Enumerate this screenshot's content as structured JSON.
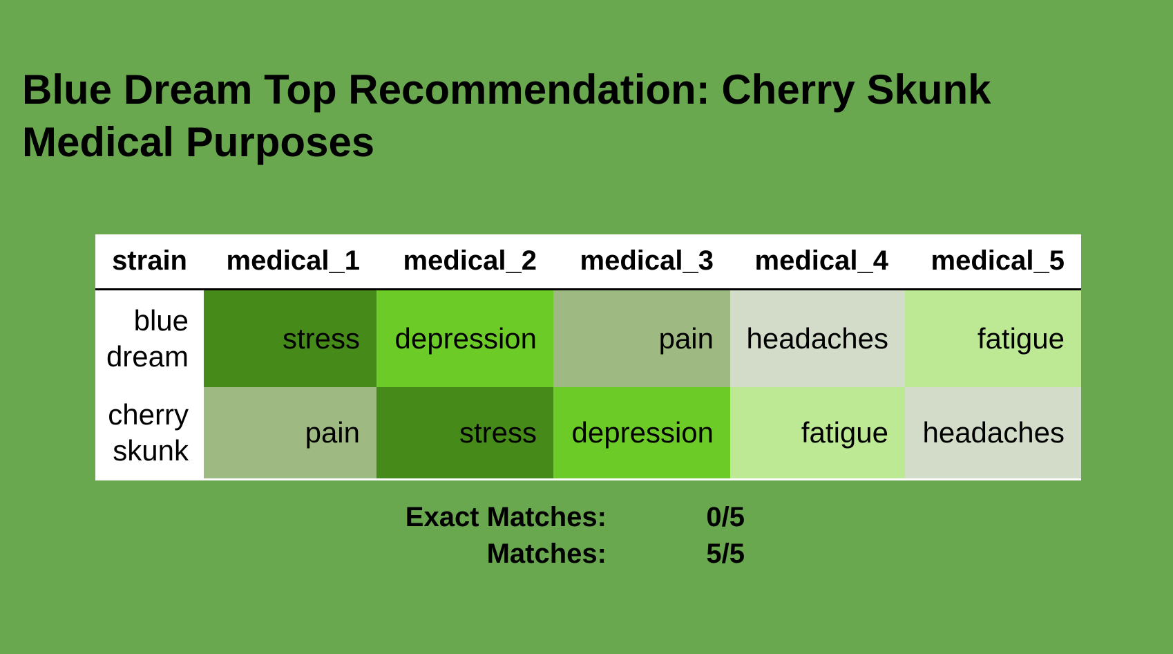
{
  "title": {
    "line1": "Blue Dream Top Recommendation: Cherry Skunk",
    "line2": "Medical Purposes"
  },
  "table": {
    "columns": [
      "strain",
      "medical_1",
      "medical_2",
      "medical_3",
      "medical_4",
      "medical_5"
    ],
    "rows": [
      {
        "strain": "blue dream",
        "cells": [
          {
            "text": "stress",
            "color": "#468a1a"
          },
          {
            "text": "depression",
            "color": "#6dcb27"
          },
          {
            "text": "pain",
            "color": "#9eb982"
          },
          {
            "text": "headaches",
            "color": "#d3dcc9"
          },
          {
            "text": "fatigue",
            "color": "#bde995"
          }
        ]
      },
      {
        "strain": "cherry skunk",
        "cells": [
          {
            "text": "pain",
            "color": "#9eb982"
          },
          {
            "text": "stress",
            "color": "#468a1a"
          },
          {
            "text": "depression",
            "color": "#6dcb27"
          },
          {
            "text": "fatigue",
            "color": "#bde995"
          },
          {
            "text": "headaches",
            "color": "#d3dcc9"
          }
        ]
      }
    ]
  },
  "summary": {
    "exact_label": "Exact Matches:",
    "exact_value": "0/5",
    "matches_label": "Matches:",
    "matches_value": "5/5"
  }
}
